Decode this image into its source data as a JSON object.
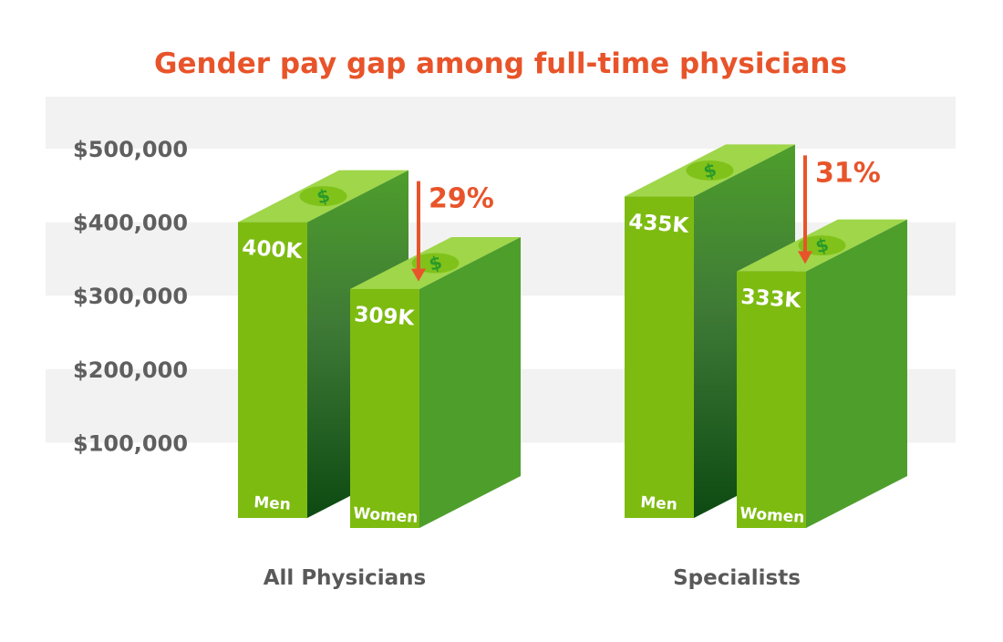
{
  "chart_data": {
    "type": "bar",
    "title": "Gender pay gap among full-time physicians",
    "xlabel": "",
    "ylabel": "",
    "ylim": [
      0,
      550000
    ],
    "yticks": [
      100000,
      200000,
      300000,
      400000,
      500000
    ],
    "ytick_labels": [
      "$100,000",
      "$200,000",
      "$300,000",
      "$400,000",
      "$500,000"
    ],
    "groups": [
      {
        "name": "All Physicians",
        "gap_label": "29%",
        "bars": [
          {
            "label": "Men",
            "value": 400000,
            "value_label": "400K"
          },
          {
            "label": "Women",
            "value": 309000,
            "value_label": "309K"
          }
        ]
      },
      {
        "name": "Specialists",
        "gap_label": "31%",
        "bars": [
          {
            "label": "Men",
            "value": 435000,
            "value_label": "435K"
          },
          {
            "label": "Women",
            "value": 333000,
            "value_label": "333K"
          }
        ]
      }
    ],
    "bar_icon": "dollar-coin-icon",
    "colors": {
      "title": "#e8542a",
      "gap_arrow": "#e8542a",
      "band": "#f2f2f2",
      "bar_front": "#7dbb11",
      "bar_top": "#9fd64a",
      "bar_side_light": "#4e9e2c",
      "bar_side_dark": "#0d4a12",
      "coin": "#80c21a",
      "coin_text": "#2a9a2a",
      "axis_text": "#5f5f5f"
    }
  }
}
